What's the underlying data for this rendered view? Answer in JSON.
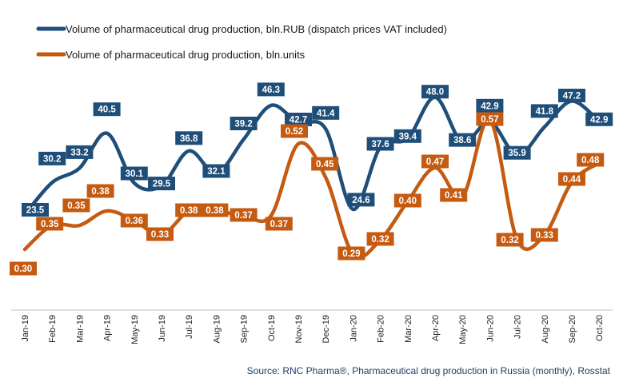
{
  "chart_data": {
    "type": "line",
    "categories": [
      "Jan-19",
      "Feb-19",
      "Mar-19",
      "Apr-19",
      "May-19",
      "Jun-19",
      "Jul-19",
      "Aug-19",
      "Sep-19",
      "Oct-19",
      "Nov-19",
      "Dec-19",
      "Jan-20",
      "Feb-20",
      "Mar-20",
      "Apr-20",
      "May-20",
      "Jun-20",
      "Jul-20",
      "Aug-20",
      "Sep-20",
      "Oct-20"
    ],
    "series": [
      {
        "name": "Volume of pharmaceutical drug production, bln.RUB (dispatch prices VAT included)",
        "values": [
          23.5,
          30.2,
          33.2,
          40.5,
          30.1,
          29.5,
          36.8,
          32.1,
          39.2,
          46.3,
          42.7,
          41.4,
          24.6,
          37.6,
          39.4,
          48.0,
          38.6,
          42.9,
          35.9,
          41.8,
          47.2,
          42.9
        ],
        "labels": [
          "23.5",
          "30.2",
          "33.2",
          "40.5",
          "30.1",
          "29.5",
          "36.8",
          "32.1",
          "39.2",
          "46.3",
          "42.7",
          "41.4",
          "24.6",
          "37.6",
          "39.4",
          "48.0",
          "38.6",
          "42.9",
          "35.9",
          "41.8",
          "47.2",
          "42.9"
        ],
        "color": "#1f4e79"
      },
      {
        "name": "Volume of pharmaceutical drug production, bln.units",
        "values": [
          0.3,
          0.35,
          0.35,
          0.38,
          0.36,
          0.33,
          0.38,
          0.38,
          0.37,
          0.37,
          0.52,
          0.45,
          0.29,
          0.32,
          0.4,
          0.47,
          0.41,
          0.57,
          0.32,
          0.33,
          0.44,
          0.48
        ],
        "labels": [
          "0.30",
          "0.35",
          "0.35",
          "0.38",
          "0.36",
          "0.33",
          "0.38",
          "0.38",
          "0.37",
          "0.37",
          "0.52",
          "0.45",
          "0.29",
          "0.32",
          "0.40",
          "0.47",
          "0.41",
          "0.57",
          "0.32",
          "0.33",
          "0.44",
          "0.48"
        ],
        "color": "#c55a11"
      }
    ],
    "legend_position": "top-left",
    "grid": false
  },
  "source": "Source: RNC Pharma®,  Pharmaceutical drug production in Russia (monthly), Rosstat"
}
